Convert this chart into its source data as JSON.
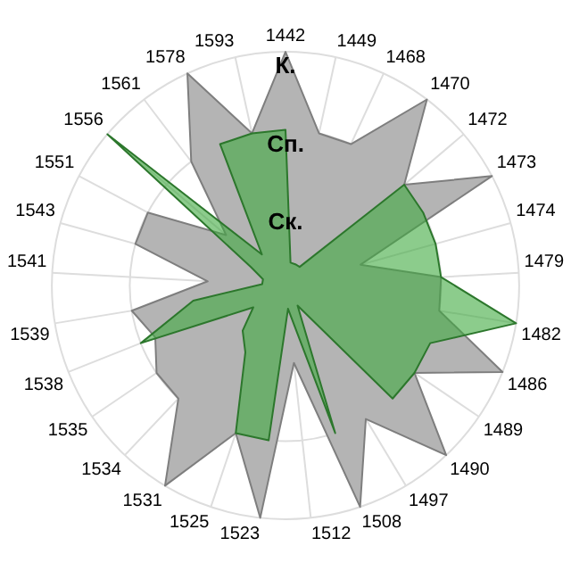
{
  "chart_data": {
    "type": "radar",
    "categories": [
      "1442",
      "1449",
      "1468",
      "1470",
      "1472",
      "1473",
      "1474",
      "1479",
      "1482",
      "1486",
      "1489",
      "1490",
      "1497",
      "1508",
      "1512",
      "1523",
      "1525",
      "1531",
      "1534",
      "1535",
      "1538",
      "1539",
      "1541",
      "1543",
      "1551",
      "1556",
      "1561",
      "1578",
      "1593"
    ],
    "series": [
      {
        "color": "#b4b4b4",
        "values": [
          3,
          2,
          2,
          3,
          2,
          3,
          1,
          2,
          2,
          3,
          2,
          3,
          2,
          3,
          1,
          3,
          2,
          3,
          2,
          2,
          1.8,
          2,
          1,
          2,
          2,
          1,
          2,
          3,
          2
        ]
      },
      {
        "color": "#3faa3f",
        "values": [
          2,
          0.3,
          0.3,
          0.3,
          2,
          2,
          2,
          2,
          3,
          2,
          2,
          2,
          0.3,
          2,
          0.3,
          2,
          2,
          1,
          0.8,
          0.5,
          2,
          1.2,
          0.3,
          0.3,
          0.5,
          3,
          0.5,
          2,
          2
        ]
      }
    ],
    "ylim": [
      0,
      3
    ],
    "yticks": [
      {
        "value": 1,
        "label": "Ск."
      },
      {
        "value": 2,
        "label": "Сп."
      },
      {
        "value": 3,
        "label": "К."
      }
    ],
    "grid": true,
    "legend": false,
    "marker": "none"
  }
}
